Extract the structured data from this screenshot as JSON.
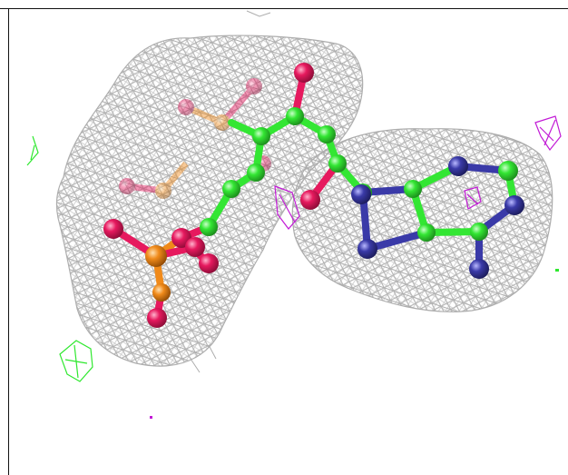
{
  "viewer": {
    "background": "#ffffff",
    "frame_color": "#111111"
  },
  "colors": {
    "mesh": "#a9a9a9",
    "carbon": "#33e633",
    "oxygen": "#e6195e",
    "nitrogen": "#3a3aa8",
    "phosphorus": "#f08a1a",
    "density_negative": "#c21ad6",
    "density_positive": "#2ee82e"
  },
  "icons": [
    "electron-density-mesh",
    "ball-and-stick-molecule"
  ]
}
